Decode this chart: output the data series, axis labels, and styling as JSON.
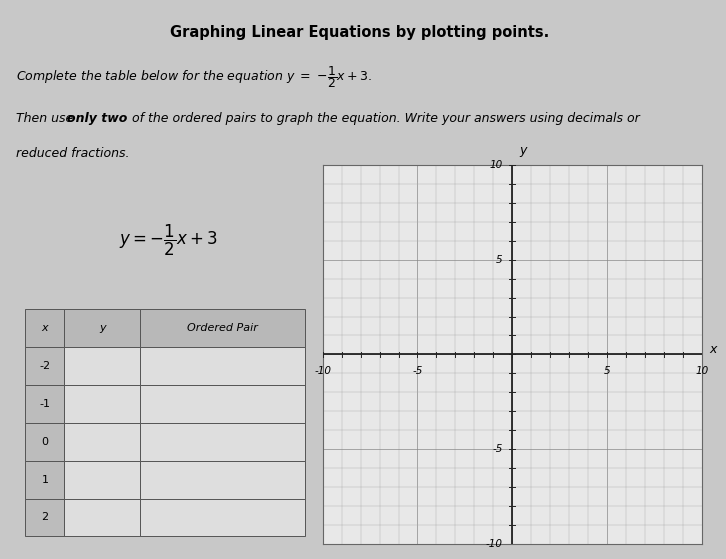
{
  "title": "Graphing Linear Equations by plotting points.",
  "table_x_values": [
    -2,
    -1,
    0,
    1,
    2
  ],
  "table_headers": [
    "x",
    "y",
    "Ordered Pair"
  ],
  "graph_xlim": [
    -10,
    10
  ],
  "graph_ylim": [
    -10,
    10
  ],
  "bg_color": "#c8c8c8",
  "graph_bg": "#e8e8e8",
  "title_bg": "#d0d0d0",
  "left_panel_bg": "#c4c4c4",
  "table_header_bg": "#b8b8b8",
  "table_x_bg": "#bcbcbc",
  "table_empty_bg": "#dedede",
  "grid_minor_color": "#aaaaaa",
  "grid_major_color": "#888888",
  "axis_line_color": "#222222",
  "border_color": "#888888"
}
